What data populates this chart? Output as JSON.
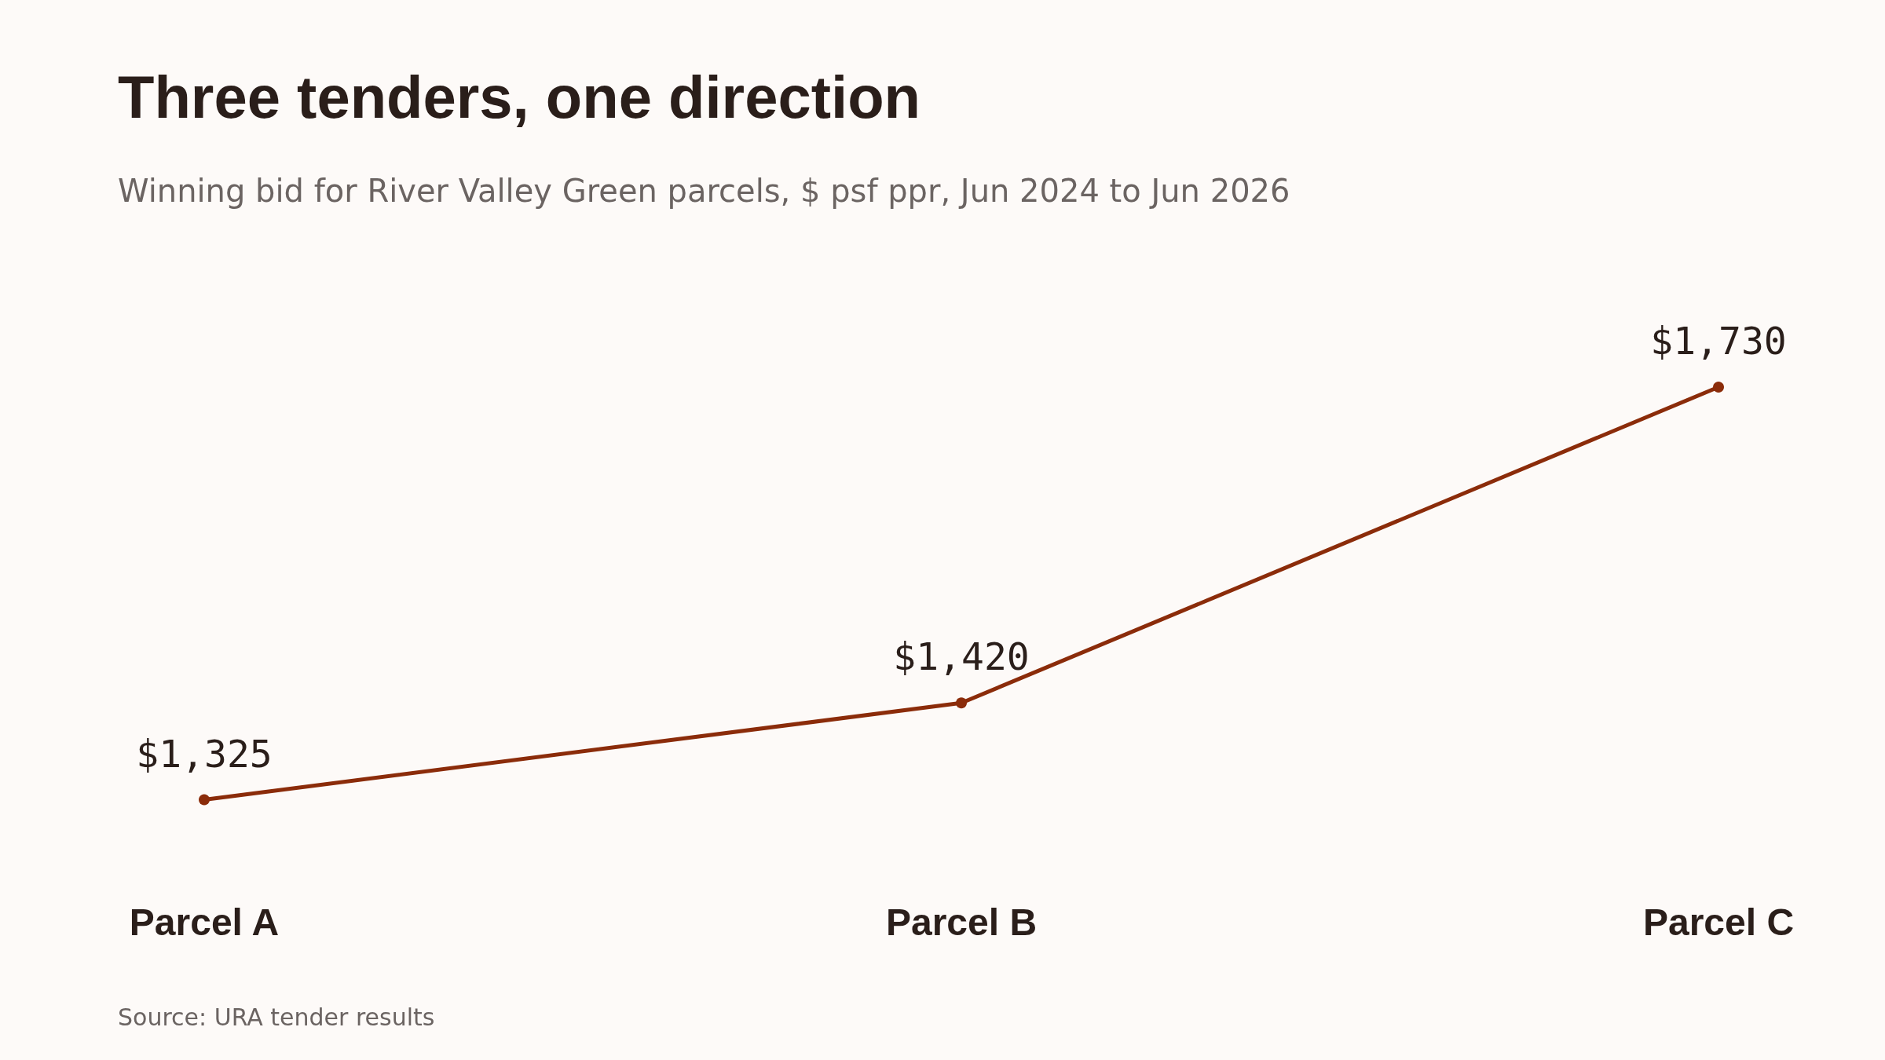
{
  "chart_data": {
    "type": "line",
    "title": "Three tenders, one direction",
    "subtitle": "Winning bid for River Valley Green parcels, $ psf ppr, Jun 2024 to Jun 2026",
    "categories": [
      "Parcel A",
      "Parcel B",
      "Parcel C"
    ],
    "series": [
      {
        "color": "#8b2c0a",
        "values": [
          1325,
          1420,
          1730
        ],
        "value_labels": [
          "$1,325",
          "$1,420",
          "$1,730"
        ]
      }
    ],
    "marker": "circle",
    "grid": false,
    "annotations": [
      "Source: URA tender results"
    ]
  }
}
